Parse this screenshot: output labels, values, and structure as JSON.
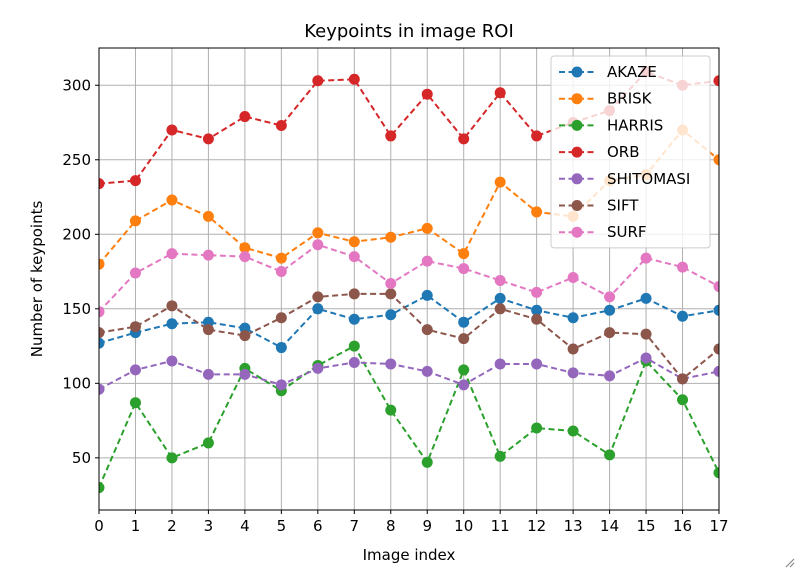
{
  "chart_data": {
    "type": "line",
    "title": "Keypoints in image ROI",
    "xlabel": "Image index",
    "ylabel": "Number of keypoints",
    "x": [
      0,
      1,
      2,
      3,
      4,
      5,
      6,
      7,
      8,
      9,
      10,
      11,
      12,
      13,
      14,
      15,
      16,
      17
    ],
    "xlim": [
      0,
      17
    ],
    "ylim": [
      15,
      325
    ],
    "xticks": [
      0,
      1,
      2,
      3,
      4,
      5,
      6,
      7,
      8,
      9,
      10,
      11,
      12,
      13,
      14,
      15,
      16,
      17
    ],
    "yticks": [
      50,
      100,
      150,
      200,
      250,
      300
    ],
    "grid": true,
    "legend_position": "top-right",
    "line_style": "dashed",
    "marker": "circle",
    "series": [
      {
        "name": "AKAZE",
        "color": "#1f77b4",
        "values": [
          127,
          134,
          140,
          141,
          137,
          124,
          150,
          143,
          146,
          159,
          141,
          157,
          149,
          144,
          149,
          157,
          145,
          149
        ]
      },
      {
        "name": "BRISK",
        "color": "#ff7f0e",
        "values": [
          180,
          209,
          223,
          212,
          191,
          184,
          201,
          195,
          198,
          204,
          187,
          235,
          215,
          212,
          236,
          240,
          270,
          250
        ]
      },
      {
        "name": "HARRIS",
        "color": "#2ca02c",
        "values": [
          30,
          87,
          50,
          60,
          110,
          95,
          112,
          125,
          82,
          47,
          109,
          51,
          70,
          68,
          52,
          115,
          89,
          40
        ]
      },
      {
        "name": "ORB",
        "color": "#d62728",
        "values": [
          234,
          236,
          270,
          264,
          279,
          273,
          303,
          304,
          266,
          294,
          264,
          295,
          266,
          275,
          283,
          309,
          300,
          303
        ]
      },
      {
        "name": "SHITOMASI",
        "color": "#9467bd",
        "values": [
          96,
          109,
          115,
          106,
          106,
          99,
          110,
          114,
          113,
          108,
          99,
          113,
          113,
          107,
          105,
          117,
          103,
          108
        ]
      },
      {
        "name": "SIFT",
        "color": "#8c564b",
        "values": [
          134,
          138,
          152,
          136,
          132,
          144,
          158,
          160,
          160,
          136,
          130,
          150,
          143,
          123,
          134,
          133,
          103,
          123
        ]
      },
      {
        "name": "SURF",
        "color": "#e377c2",
        "values": [
          148,
          174,
          187,
          186,
          185,
          175,
          193,
          185,
          167,
          182,
          177,
          169,
          161,
          171,
          158,
          184,
          178,
          165
        ]
      }
    ]
  }
}
